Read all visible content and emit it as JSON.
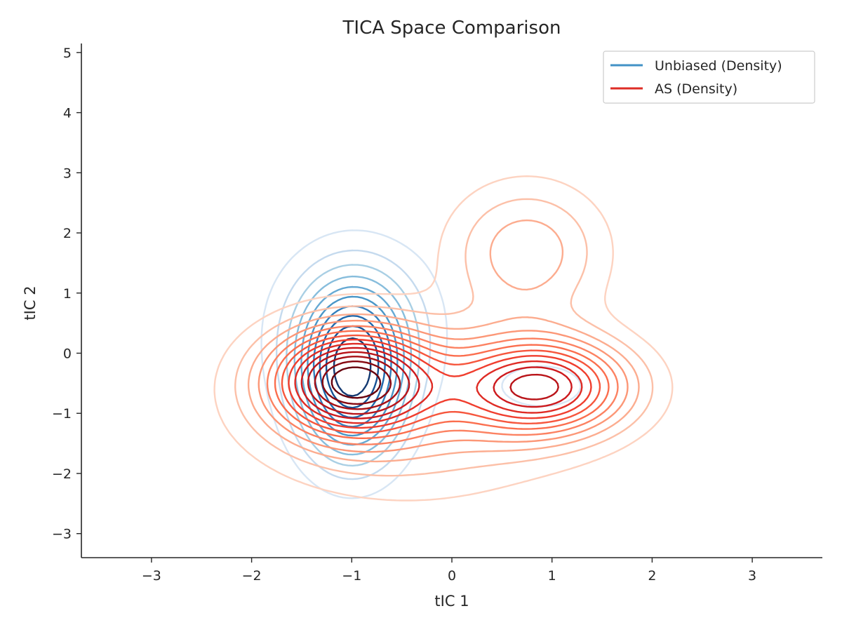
{
  "chart_data": {
    "type": "contour",
    "title": "TICA Space Comparison",
    "xlabel": "tIC 1",
    "ylabel": "tIC 2",
    "xlim": [
      -3.7,
      3.7
    ],
    "ylim": [
      -3.4,
      5.15
    ],
    "xticks": [
      -3,
      -2,
      -1,
      0,
      1,
      2,
      3
    ],
    "xtick_labels": [
      "−3",
      "−2",
      "−1",
      "0",
      "1",
      "2",
      "3"
    ],
    "yticks": [
      -3,
      -2,
      -1,
      0,
      1,
      2,
      3,
      4,
      5
    ],
    "ytick_labels": [
      "−3",
      "−2",
      "−1",
      "0",
      "1",
      "2",
      "3",
      "4",
      "5"
    ],
    "grid": false,
    "legend_position": "top-right",
    "series": [
      {
        "name": "Unbiased (Density)",
        "color": "#4292c6",
        "colormap": "Blues",
        "levels": 10,
        "modes": [
          {
            "center": [
              -1.0,
              -0.45
            ],
            "sigma": [
              0.38,
              0.95
            ],
            "weight": 1.0
          },
          {
            "center": [
              -0.95,
              0.55
            ],
            "sigma": [
              0.55,
              0.9
            ],
            "weight": 0.35
          },
          {
            "center": [
              0.9,
              -0.55
            ],
            "sigma": [
              0.35,
              0.3
            ],
            "weight": 0.22
          },
          {
            "center": [
              0.6,
              1.8
            ],
            "sigma": [
              0.45,
              0.35
            ],
            "weight": 0.06
          }
        ]
      },
      {
        "name": "AS (Density)",
        "color": "#de2d26",
        "colormap": "Reds",
        "levels": 14,
        "modes": [
          {
            "center": [
              -1.0,
              -0.45
            ],
            "sigma": [
              0.55,
              0.6
            ],
            "weight": 1.0
          },
          {
            "center": [
              0.9,
              -0.55
            ],
            "sigma": [
              0.6,
              0.55
            ],
            "weight": 0.8
          },
          {
            "center": [
              0.75,
              1.7
            ],
            "sigma": [
              0.55,
              0.8
            ],
            "weight": 0.3
          },
          {
            "center": [
              -0.4,
              -1.0
            ],
            "sigma": [
              1.1,
              1.0
            ],
            "weight": 0.25
          }
        ]
      }
    ]
  }
}
